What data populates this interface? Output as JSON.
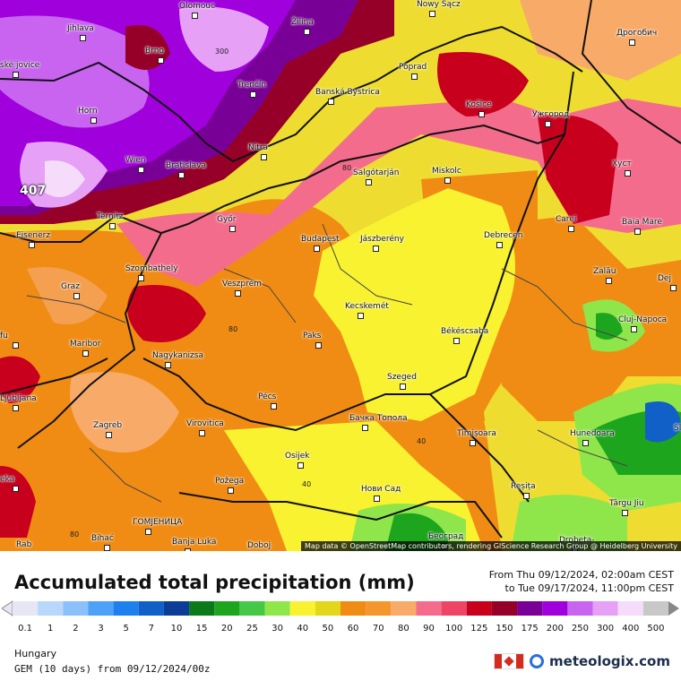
{
  "title": "Accumulated total precipitation (mm)",
  "period": {
    "from": "From Thu 09/12/2024, 02:00am CEST",
    "to": "to Tue 09/17/2024, 11:00pm CEST"
  },
  "region": "Hungary",
  "model": "GEM (10 days) from 09/12/2024/00z",
  "attribution": "Map data © OpenStreetMap contributors, rendering GIScience Research Group @ Heidelberg University",
  "brand": "meteologix.com",
  "peak_value": "407",
  "legend": {
    "labels": [
      "0.1",
      "1",
      "2",
      "3",
      "5",
      "7",
      "10",
      "15",
      "20",
      "25",
      "30",
      "40",
      "50",
      "60",
      "70",
      "80",
      "90",
      "100",
      "125",
      "150",
      "175",
      "200",
      "250",
      "300",
      "400",
      "500"
    ],
    "colors": [
      "#e6e6f5",
      "#b9d7fb",
      "#8cc0fb",
      "#4da1f7",
      "#1e7fee",
      "#1060c8",
      "#0c3c96",
      "#0a7a1a",
      "#1ea51e",
      "#45c845",
      "#8fe64b",
      "#f8f230",
      "#e4d61a",
      "#f08c14",
      "#f4962c",
      "#f8aa68",
      "#f46c8c",
      "#ee4466",
      "#c8001e",
      "#960028",
      "#780096",
      "#a000dc",
      "#c864f0",
      "#e6a0f5",
      "#f5dcfa",
      "#c8c8c8"
    ]
  },
  "isolines": [
    "300",
    "80",
    "80",
    "40",
    "40",
    "80"
  ],
  "cities": [
    {
      "name": "Olomouc"
    },
    {
      "name": "Nowy Sącz"
    },
    {
      "name": "Jihlava"
    },
    {
      "name": "Brno"
    },
    {
      "name": "Žilina"
    },
    {
      "name": "Poprad"
    },
    {
      "name": "Дрогобич"
    },
    {
      "name": "Trenčín"
    },
    {
      "name": "Banská Bystrica"
    },
    {
      "name": "Košice"
    },
    {
      "name": "Ужгород"
    },
    {
      "name": "Horn"
    },
    {
      "name": "Nitra"
    },
    {
      "name": "Wien"
    },
    {
      "name": "Bratislava"
    },
    {
      "name": "Salgótarján"
    },
    {
      "name": "Miskolc"
    },
    {
      "name": "Хуст"
    },
    {
      "name": "Ternitz"
    },
    {
      "name": "Győr"
    },
    {
      "name": "Carei"
    },
    {
      "name": "Baia Mare"
    },
    {
      "name": "Eisenerz"
    },
    {
      "name": "Budapest"
    },
    {
      "name": "Jászberény"
    },
    {
      "name": "Debrecen"
    },
    {
      "name": "Szombathely"
    },
    {
      "name": "Zalău"
    },
    {
      "name": "Graz"
    },
    {
      "name": "Veszprém"
    },
    {
      "name": "Kecskemét"
    },
    {
      "name": "Cluj-Napoca"
    },
    {
      "name": "Maribor"
    },
    {
      "name": "Paks"
    },
    {
      "name": "Békéscsaba"
    },
    {
      "name": "Nagykanizsa"
    },
    {
      "name": "Szeged"
    },
    {
      "name": "Ljubljana"
    },
    {
      "name": "Pécs"
    },
    {
      "name": "Zagreb"
    },
    {
      "name": "Virovitica"
    },
    {
      "name": "Бачка Топола"
    },
    {
      "name": "Timișoara"
    },
    {
      "name": "Hunedoara"
    },
    {
      "name": "Osijek"
    },
    {
      "name": "Požega"
    },
    {
      "name": "Нови Сад"
    },
    {
      "name": "Reșița"
    },
    {
      "name": "Târgu Jiu"
    },
    {
      "name": "ГОМЈЕНИЦА"
    },
    {
      "name": "Bihać"
    },
    {
      "name": "Banja Luka"
    },
    {
      "name": "Doboj"
    },
    {
      "name": "Београд"
    },
    {
      "name": "Drobeta-"
    },
    {
      "name": "Rab"
    },
    {
      "name": "Dej"
    },
    {
      "name": "fu"
    },
    {
      "name": "eka"
    },
    {
      "name": "ské jovice"
    },
    {
      "name": "Sl"
    }
  ]
}
